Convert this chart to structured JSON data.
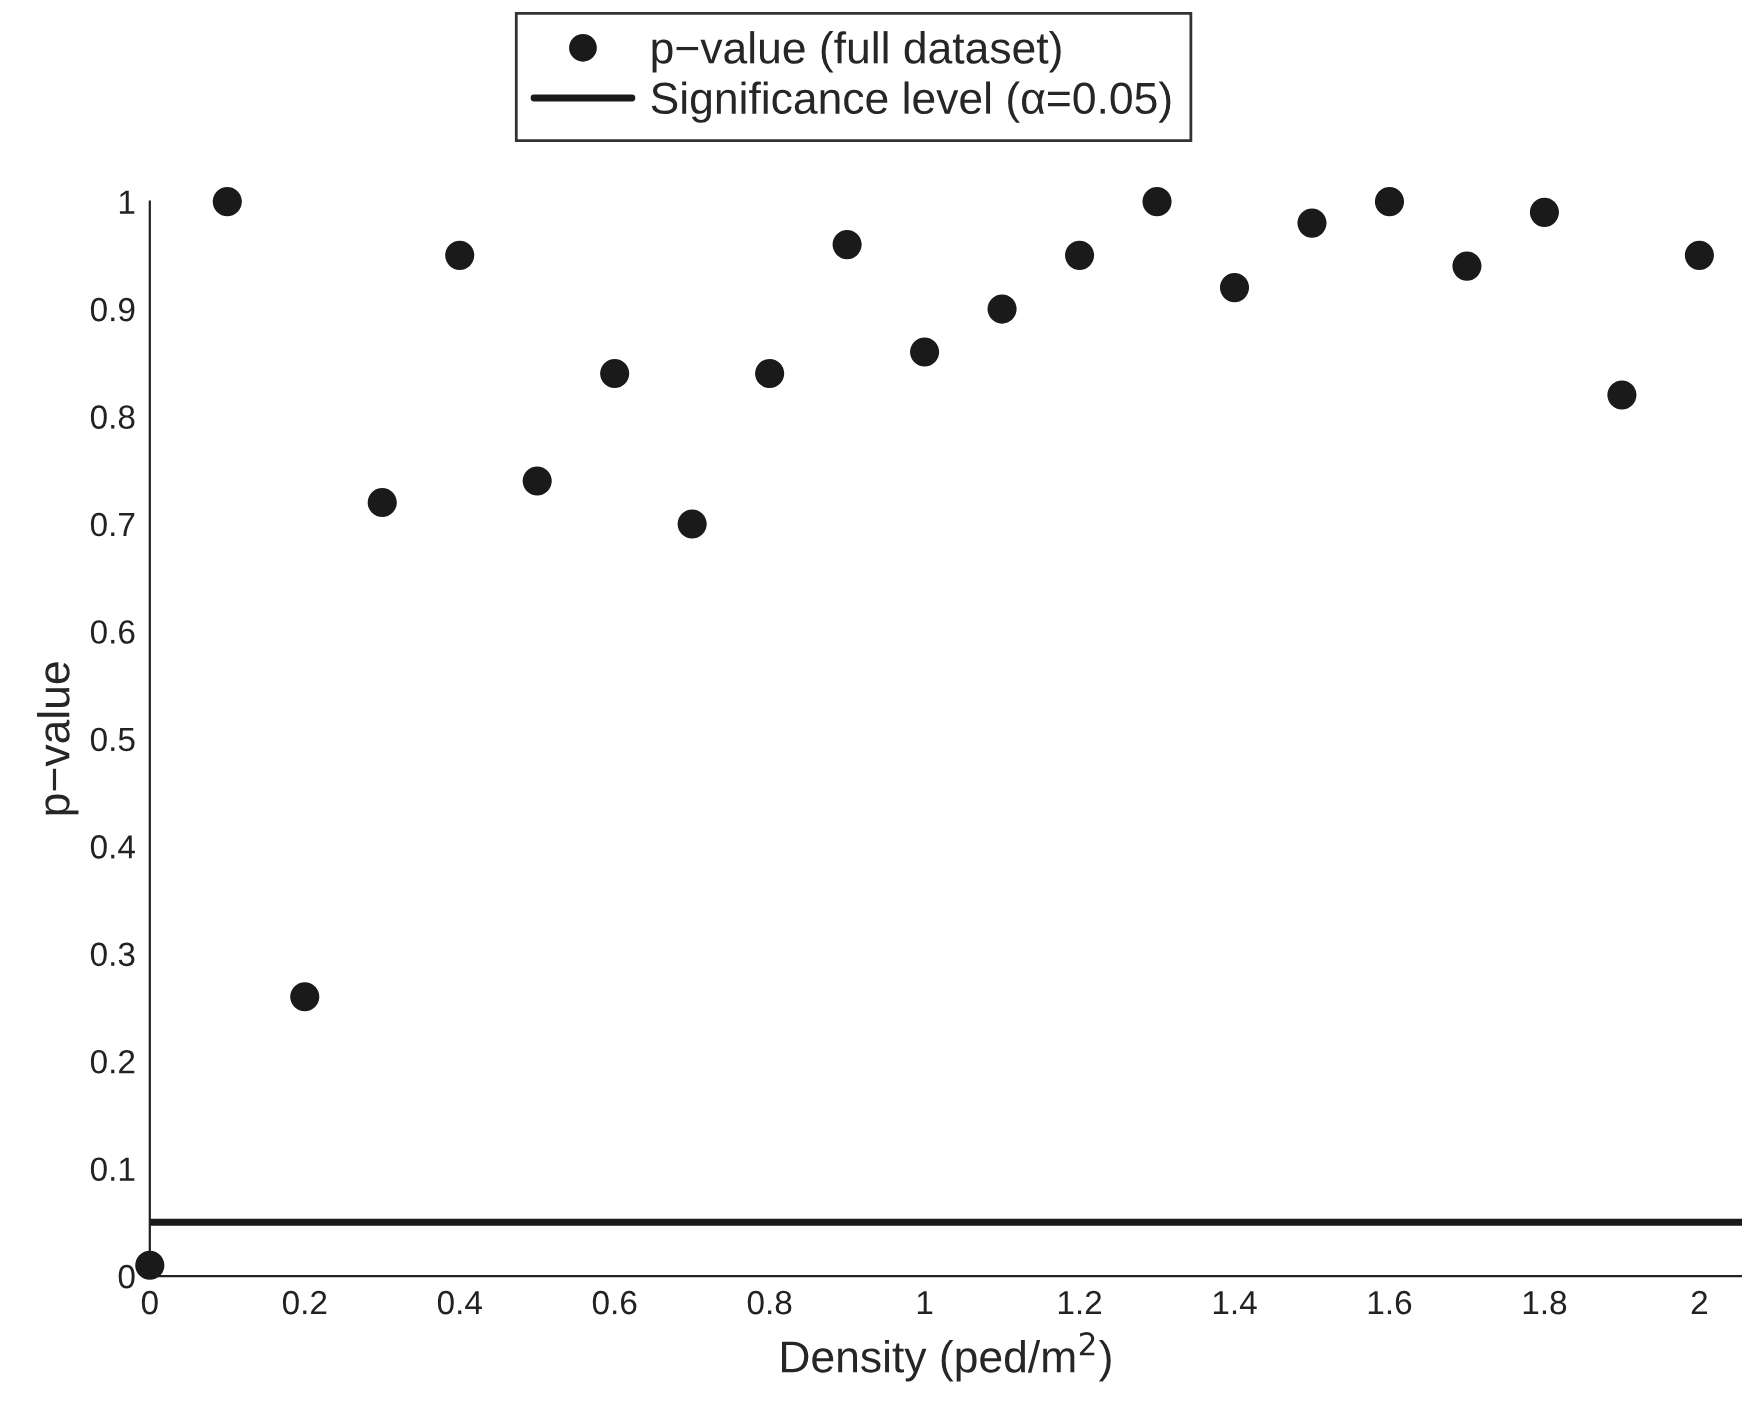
{
  "chart_data": {
    "type": "scatter",
    "xlabel": "Density (ped/m$^{2}$)",
    "ylabel": "p−value",
    "x": [
      0,
      0.1,
      0.2,
      0.3,
      0.4,
      0.5,
      0.6,
      0.7,
      0.8,
      0.9,
      1.0,
      1.1,
      1.2,
      1.3,
      1.4,
      1.5,
      1.6,
      1.7,
      1.8,
      1.9,
      2.0
    ],
    "series": [
      {
        "name": "p−value (full dataset)",
        "color": "#1a1a1a",
        "values": [
          0.01,
          1.0,
          0.26,
          0.72,
          0.95,
          0.74,
          0.84,
          0.7,
          0.84,
          0.96,
          0.86,
          0.9,
          0.95,
          1.0,
          0.92,
          0.98,
          1.0,
          0.94,
          0.99,
          0.82,
          0.95
        ]
      }
    ],
    "ref_lines": [
      {
        "axis": "y",
        "value": 0.05,
        "label": "Significance level (α=0.05)",
        "color": "#1a1a1a",
        "line_style": "solid"
      }
    ],
    "marker": "circle",
    "xlim": [
      0,
      2.055
    ],
    "ylim": [
      0,
      1
    ],
    "xticks": [
      0,
      0.2,
      0.4,
      0.6,
      0.8,
      1,
      1.2,
      1.4,
      1.6,
      1.8,
      2
    ],
    "yticks": [
      0,
      0.1,
      0.2,
      0.3,
      0.4,
      0.5,
      0.6,
      0.7,
      0.8,
      0.9,
      1
    ],
    "grid": false,
    "legend": "top"
  }
}
